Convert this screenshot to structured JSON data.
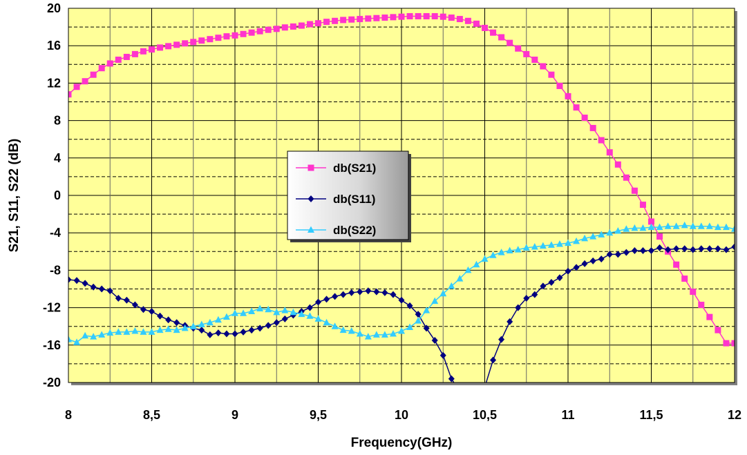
{
  "chart_data": {
    "type": "line",
    "title": "",
    "xlabel": "Frequency(GHz)",
    "ylabel": "S21, S11, S22 (dB)",
    "xlim": [
      8,
      12
    ],
    "ylim": [
      -20,
      20
    ],
    "x_ticks": [
      8,
      8.5,
      9,
      9.5,
      10,
      10.5,
      11,
      11.5,
      12
    ],
    "x_tick_labels": [
      "8",
      "8,5",
      "9",
      "9,5",
      "10",
      "10,5",
      "11",
      "11,5",
      "12"
    ],
    "y_ticks": [
      -20,
      -16,
      -12,
      -8,
      -4,
      0,
      4,
      8,
      12,
      16,
      20
    ],
    "y_tick_labels": [
      "-20",
      "-16",
      "-12",
      "-8",
      "-4",
      "0",
      "4",
      "8",
      "12",
      "16",
      "20"
    ],
    "grid": true,
    "plot_background": "#ffff99",
    "legend_position": "center-left",
    "series": [
      {
        "name": "db(S21)",
        "color": "#ff33cc",
        "marker": "square",
        "x": [
          8.0,
          8.05,
          8.1,
          8.15,
          8.2,
          8.25,
          8.3,
          8.35,
          8.4,
          8.45,
          8.5,
          8.55,
          8.6,
          8.65,
          8.7,
          8.75,
          8.8,
          8.85,
          8.9,
          8.95,
          9.0,
          9.05,
          9.1,
          9.15,
          9.2,
          9.25,
          9.3,
          9.35,
          9.4,
          9.45,
          9.5,
          9.55,
          9.6,
          9.65,
          9.7,
          9.75,
          9.8,
          9.85,
          9.9,
          9.95,
          10.0,
          10.05,
          10.1,
          10.15,
          10.2,
          10.25,
          10.3,
          10.35,
          10.4,
          10.45,
          10.5,
          10.55,
          10.6,
          10.65,
          10.7,
          10.75,
          10.8,
          10.85,
          10.9,
          10.95,
          11.0,
          11.05,
          11.1,
          11.15,
          11.2,
          11.25,
          11.3,
          11.35,
          11.4,
          11.45,
          11.5,
          11.55,
          11.6,
          11.65,
          11.7,
          11.75,
          11.8,
          11.85,
          11.9,
          11.95,
          12.0
        ],
        "y": [
          10.8,
          11.6,
          12.2,
          12.9,
          13.6,
          14.1,
          14.5,
          14.8,
          15.1,
          15.4,
          15.6,
          15.8,
          15.95,
          16.1,
          16.25,
          16.4,
          16.55,
          16.7,
          16.85,
          17.0,
          17.1,
          17.25,
          17.4,
          17.55,
          17.7,
          17.8,
          17.95,
          18.05,
          18.15,
          18.3,
          18.4,
          18.55,
          18.65,
          18.75,
          18.8,
          18.85,
          18.9,
          18.95,
          19.0,
          19.05,
          19.1,
          19.15,
          19.15,
          19.15,
          19.15,
          19.1,
          19.0,
          18.85,
          18.65,
          18.35,
          17.9,
          17.4,
          16.9,
          16.3,
          15.7,
          15.1,
          14.5,
          13.8,
          12.9,
          11.7,
          10.6,
          9.4,
          8.3,
          7.2,
          5.9,
          4.6,
          3.3,
          1.9,
          0.5,
          -1.0,
          -2.8,
          -4.4,
          -6.0,
          -7.4,
          -8.9,
          -10.3,
          -11.7,
          -13.0,
          -14.4,
          -15.8,
          -15.8
        ]
      },
      {
        "name": "db(S11)",
        "color": "#000080",
        "marker": "diamond",
        "x": [
          8.0,
          8.05,
          8.1,
          8.15,
          8.2,
          8.25,
          8.3,
          8.35,
          8.4,
          8.45,
          8.5,
          8.55,
          8.6,
          8.65,
          8.7,
          8.75,
          8.8,
          8.85,
          8.9,
          8.95,
          9.0,
          9.05,
          9.1,
          9.15,
          9.2,
          9.25,
          9.3,
          9.35,
          9.4,
          9.45,
          9.5,
          9.55,
          9.6,
          9.65,
          9.7,
          9.75,
          9.8,
          9.85,
          9.9,
          9.95,
          10.0,
          10.05,
          10.1,
          10.15,
          10.2,
          10.25,
          10.3,
          10.35,
          10.5,
          10.55,
          10.6,
          10.65,
          10.7,
          10.75,
          10.8,
          10.85,
          10.9,
          10.95,
          11.0,
          11.05,
          11.1,
          11.15,
          11.2,
          11.25,
          11.3,
          11.35,
          11.4,
          11.45,
          11.5,
          11.55,
          11.6,
          11.65,
          11.7,
          11.75,
          11.8,
          11.85,
          11.9,
          11.95,
          12.0
        ],
        "y": [
          -9.0,
          -9.1,
          -9.4,
          -9.8,
          -10.0,
          -10.2,
          -11.0,
          -11.2,
          -11.7,
          -12.2,
          -12.4,
          -12.9,
          -13.3,
          -13.6,
          -13.9,
          -14.2,
          -14.4,
          -14.9,
          -14.7,
          -14.8,
          -14.8,
          -14.6,
          -14.4,
          -14.2,
          -13.9,
          -13.6,
          -13.2,
          -12.8,
          -12.4,
          -12.0,
          -11.4,
          -11.1,
          -10.8,
          -10.6,
          -10.4,
          -10.3,
          -10.2,
          -10.3,
          -10.4,
          -10.6,
          -11.2,
          -11.8,
          -12.7,
          -14.2,
          -15.5,
          -17.1,
          -19.6,
          -21.0,
          -20.5,
          -17.6,
          -15.4,
          -13.5,
          -12.0,
          -11.0,
          -10.6,
          -9.7,
          -9.3,
          -8.8,
          -8.1,
          -7.7,
          -7.3,
          -7.0,
          -6.8,
          -6.3,
          -6.3,
          -6.1,
          -5.9,
          -5.9,
          -5.9,
          -5.6,
          -5.8,
          -5.7,
          -5.7,
          -5.8,
          -5.7,
          -5.7,
          -5.7,
          -5.8,
          -5.5
        ]
      },
      {
        "name": "db(S22)",
        "color": "#33ccff",
        "marker": "triangle",
        "x": [
          8.0,
          8.05,
          8.1,
          8.15,
          8.2,
          8.25,
          8.3,
          8.35,
          8.4,
          8.45,
          8.5,
          8.55,
          8.6,
          8.65,
          8.7,
          8.75,
          8.8,
          8.85,
          8.9,
          8.95,
          9.0,
          9.05,
          9.1,
          9.15,
          9.2,
          9.25,
          9.3,
          9.35,
          9.4,
          9.45,
          9.5,
          9.55,
          9.6,
          9.65,
          9.7,
          9.75,
          9.8,
          9.85,
          9.9,
          9.95,
          10.0,
          10.05,
          10.1,
          10.15,
          10.2,
          10.25,
          10.3,
          10.35,
          10.4,
          10.45,
          10.5,
          10.55,
          10.6,
          10.65,
          10.7,
          10.75,
          10.8,
          10.85,
          10.9,
          10.95,
          11.0,
          11.05,
          11.1,
          11.15,
          11.2,
          11.25,
          11.3,
          11.35,
          11.4,
          11.45,
          11.5,
          11.55,
          11.6,
          11.65,
          11.7,
          11.75,
          11.8,
          11.85,
          11.9,
          11.95,
          12.0
        ],
        "y": [
          -15.4,
          -15.7,
          -15.0,
          -15.1,
          -14.9,
          -14.7,
          -14.6,
          -14.6,
          -14.5,
          -14.6,
          -14.6,
          -14.4,
          -14.3,
          -14.4,
          -14.2,
          -14.0,
          -13.8,
          -13.6,
          -13.3,
          -13.0,
          -12.6,
          -12.6,
          -12.4,
          -12.1,
          -12.2,
          -12.5,
          -12.3,
          -12.5,
          -12.7,
          -12.9,
          -13.2,
          -13.6,
          -14.0,
          -14.4,
          -14.5,
          -14.8,
          -15.1,
          -14.9,
          -14.9,
          -14.8,
          -14.5,
          -14.1,
          -13.4,
          -12.3,
          -11.3,
          -10.5,
          -9.7,
          -8.9,
          -8.0,
          -7.4,
          -6.8,
          -6.4,
          -6.1,
          -5.9,
          -5.8,
          -5.6,
          -5.5,
          -5.4,
          -5.3,
          -5.2,
          -5.1,
          -4.9,
          -4.6,
          -4.4,
          -4.2,
          -4.0,
          -3.8,
          -3.6,
          -3.5,
          -3.5,
          -3.4,
          -3.4,
          -3.3,
          -3.3,
          -3.2,
          -3.3,
          -3.3,
          -3.3,
          -3.4,
          -3.4,
          -3.6
        ]
      }
    ]
  }
}
